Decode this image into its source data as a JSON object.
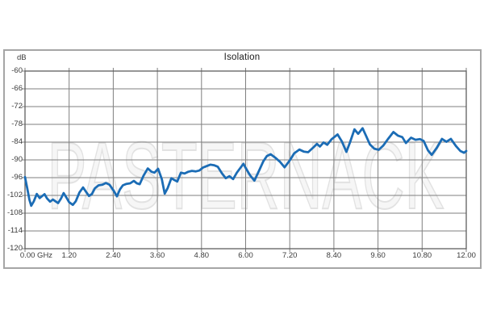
{
  "chart_data": {
    "type": "line",
    "title": "Isolation",
    "ylabel": "dB",
    "x_unit": "GHz",
    "watermark": "PASTERNACK",
    "xlim": [
      0,
      12
    ],
    "ylim": [
      -120,
      -60
    ],
    "grid": true,
    "legend": false,
    "x_ticks": [
      0,
      1.2,
      2.4,
      3.6,
      4.8,
      6.0,
      7.2,
      8.4,
      9.6,
      10.8,
      12.0
    ],
    "x_tick_labels": [
      "0.00 GHz",
      "1.20",
      "2.40",
      "3.60",
      "4.80",
      "6.00",
      "7.20",
      "8.40",
      "9.60",
      "10.80",
      "12.00"
    ],
    "y_ticks": [
      -60,
      -66,
      -72,
      -78,
      -84,
      -90,
      -96,
      -102,
      -108,
      -114,
      -120
    ],
    "y_tick_labels": [
      "-60",
      "-66",
      "-72",
      "-78",
      "-84",
      "-90",
      "-96",
      "-102",
      "-108",
      "-114",
      "-120"
    ],
    "colors": {
      "line": "#1b6cb5",
      "grid": "#7f7f7f",
      "plot_border": "#5f5f5f",
      "frame_border": "#a5a5a5",
      "text": "#3b3b3b",
      "watermark_fill": "#f6f6f6",
      "watermark_stroke": "#e2e2e2"
    },
    "series": [
      {
        "name": "Isolation",
        "x": [
          0.0,
          0.06,
          0.12,
          0.17,
          0.24,
          0.32,
          0.4,
          0.47,
          0.53,
          0.6,
          0.68,
          0.76,
          0.83,
          0.9,
          0.98,
          1.05,
          1.12,
          1.2,
          1.3,
          1.38,
          1.48,
          1.58,
          1.66,
          1.74,
          1.82,
          1.9,
          2.0,
          2.1,
          2.2,
          2.3,
          2.4,
          2.5,
          2.58,
          2.66,
          2.76,
          2.86,
          2.96,
          3.04,
          3.12,
          3.22,
          3.34,
          3.44,
          3.52,
          3.62,
          3.72,
          3.8,
          3.88,
          3.98,
          4.06,
          4.14,
          4.24,
          4.34,
          4.44,
          4.54,
          4.64,
          4.74,
          4.84,
          4.94,
          5.04,
          5.14,
          5.24,
          5.36,
          5.46,
          5.56,
          5.66,
          5.76,
          5.94,
          6.0,
          6.12,
          6.24,
          6.36,
          6.48,
          6.58,
          6.68,
          6.82,
          6.94,
          7.06,
          7.2,
          7.32,
          7.46,
          7.58,
          7.7,
          7.84,
          7.94,
          8.02,
          8.12,
          8.22,
          8.34,
          8.5,
          8.62,
          8.74,
          8.84,
          8.96,
          9.06,
          9.18,
          9.28,
          9.38,
          9.5,
          9.62,
          9.74,
          9.88,
          10.02,
          10.14,
          10.26,
          10.36,
          10.5,
          10.62,
          10.74,
          10.84,
          10.96,
          11.06,
          11.2,
          11.34,
          11.46,
          11.58,
          11.72,
          11.84,
          11.94,
          12.0
        ],
        "y": [
          -95.8,
          -99.5,
          -103.5,
          -105.5,
          -104.0,
          -101.5,
          -102.9,
          -102.2,
          -101.6,
          -103.0,
          -104.1,
          -103.4,
          -104.0,
          -104.6,
          -103.0,
          -101.2,
          -102.6,
          -104.3,
          -105.2,
          -104.0,
          -101.0,
          -99.3,
          -100.8,
          -102.2,
          -101.5,
          -99.6,
          -98.6,
          -98.4,
          -97.8,
          -98.4,
          -100.2,
          -102.3,
          -100.0,
          -98.6,
          -98.1,
          -97.9,
          -97.1,
          -97.9,
          -98.2,
          -95.4,
          -92.9,
          -94.0,
          -94.3,
          -93.0,
          -96.5,
          -101.4,
          -99.5,
          -96.2,
          -96.8,
          -97.3,
          -94.3,
          -94.6,
          -94.0,
          -93.7,
          -93.9,
          -93.6,
          -92.6,
          -92.1,
          -91.6,
          -91.8,
          -92.3,
          -94.6,
          -96.2,
          -95.5,
          -96.5,
          -94.3,
          -91.3,
          -92.7,
          -95.2,
          -97.0,
          -93.8,
          -90.5,
          -88.7,
          -88.1,
          -89.4,
          -90.7,
          -92.5,
          -90.2,
          -87.8,
          -86.5,
          -87.2,
          -87.4,
          -85.8,
          -84.6,
          -85.5,
          -84.1,
          -84.9,
          -83.0,
          -81.4,
          -83.8,
          -87.3,
          -84.0,
          -79.7,
          -81.2,
          -79.3,
          -82.0,
          -84.8,
          -86.2,
          -86.6,
          -85.2,
          -82.8,
          -80.6,
          -81.8,
          -82.3,
          -84.3,
          -82.5,
          -83.2,
          -83.0,
          -83.6,
          -86.8,
          -88.3,
          -85.9,
          -82.9,
          -83.9,
          -82.9,
          -85.3,
          -87.0,
          -87.6,
          -87.0
        ]
      }
    ]
  }
}
